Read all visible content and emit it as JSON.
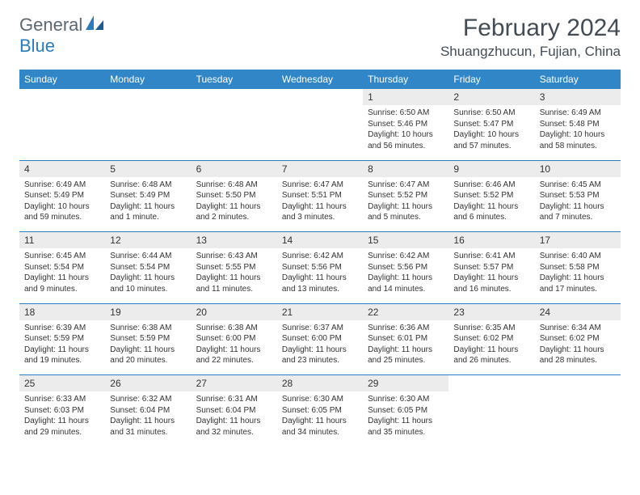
{
  "logo": {
    "part1": "General",
    "part2": "Blue"
  },
  "title": "February 2024",
  "location": "Shuangzhucun, Fujian, China",
  "colors": {
    "header_bg": "#3186c8",
    "header_text": "#ffffff",
    "daynum_bg": "#ececec",
    "rule": "#2b7bbf",
    "logo_gray": "#5c6770",
    "logo_blue": "#2b7bbf",
    "title_color": "#434c54"
  },
  "weekdays": [
    "Sunday",
    "Monday",
    "Tuesday",
    "Wednesday",
    "Thursday",
    "Friday",
    "Saturday"
  ],
  "layout": {
    "first_weekday_index": 4,
    "days_in_month": 29
  },
  "days": {
    "1": {
      "sunrise": "6:50 AM",
      "sunset": "5:46 PM",
      "daylight": "10 hours and 56 minutes."
    },
    "2": {
      "sunrise": "6:50 AM",
      "sunset": "5:47 PM",
      "daylight": "10 hours and 57 minutes."
    },
    "3": {
      "sunrise": "6:49 AM",
      "sunset": "5:48 PM",
      "daylight": "10 hours and 58 minutes."
    },
    "4": {
      "sunrise": "6:49 AM",
      "sunset": "5:49 PM",
      "daylight": "10 hours and 59 minutes."
    },
    "5": {
      "sunrise": "6:48 AM",
      "sunset": "5:49 PM",
      "daylight": "11 hours and 1 minute."
    },
    "6": {
      "sunrise": "6:48 AM",
      "sunset": "5:50 PM",
      "daylight": "11 hours and 2 minutes."
    },
    "7": {
      "sunrise": "6:47 AM",
      "sunset": "5:51 PM",
      "daylight": "11 hours and 3 minutes."
    },
    "8": {
      "sunrise": "6:47 AM",
      "sunset": "5:52 PM",
      "daylight": "11 hours and 5 minutes."
    },
    "9": {
      "sunrise": "6:46 AM",
      "sunset": "5:52 PM",
      "daylight": "11 hours and 6 minutes."
    },
    "10": {
      "sunrise": "6:45 AM",
      "sunset": "5:53 PM",
      "daylight": "11 hours and 7 minutes."
    },
    "11": {
      "sunrise": "6:45 AM",
      "sunset": "5:54 PM",
      "daylight": "11 hours and 9 minutes."
    },
    "12": {
      "sunrise": "6:44 AM",
      "sunset": "5:54 PM",
      "daylight": "11 hours and 10 minutes."
    },
    "13": {
      "sunrise": "6:43 AM",
      "sunset": "5:55 PM",
      "daylight": "11 hours and 11 minutes."
    },
    "14": {
      "sunrise": "6:42 AM",
      "sunset": "5:56 PM",
      "daylight": "11 hours and 13 minutes."
    },
    "15": {
      "sunrise": "6:42 AM",
      "sunset": "5:56 PM",
      "daylight": "11 hours and 14 minutes."
    },
    "16": {
      "sunrise": "6:41 AM",
      "sunset": "5:57 PM",
      "daylight": "11 hours and 16 minutes."
    },
    "17": {
      "sunrise": "6:40 AM",
      "sunset": "5:58 PM",
      "daylight": "11 hours and 17 minutes."
    },
    "18": {
      "sunrise": "6:39 AM",
      "sunset": "5:59 PM",
      "daylight": "11 hours and 19 minutes."
    },
    "19": {
      "sunrise": "6:38 AM",
      "sunset": "5:59 PM",
      "daylight": "11 hours and 20 minutes."
    },
    "20": {
      "sunrise": "6:38 AM",
      "sunset": "6:00 PM",
      "daylight": "11 hours and 22 minutes."
    },
    "21": {
      "sunrise": "6:37 AM",
      "sunset": "6:00 PM",
      "daylight": "11 hours and 23 minutes."
    },
    "22": {
      "sunrise": "6:36 AM",
      "sunset": "6:01 PM",
      "daylight": "11 hours and 25 minutes."
    },
    "23": {
      "sunrise": "6:35 AM",
      "sunset": "6:02 PM",
      "daylight": "11 hours and 26 minutes."
    },
    "24": {
      "sunrise": "6:34 AM",
      "sunset": "6:02 PM",
      "daylight": "11 hours and 28 minutes."
    },
    "25": {
      "sunrise": "6:33 AM",
      "sunset": "6:03 PM",
      "daylight": "11 hours and 29 minutes."
    },
    "26": {
      "sunrise": "6:32 AM",
      "sunset": "6:04 PM",
      "daylight": "11 hours and 31 minutes."
    },
    "27": {
      "sunrise": "6:31 AM",
      "sunset": "6:04 PM",
      "daylight": "11 hours and 32 minutes."
    },
    "28": {
      "sunrise": "6:30 AM",
      "sunset": "6:05 PM",
      "daylight": "11 hours and 34 minutes."
    },
    "29": {
      "sunrise": "6:30 AM",
      "sunset": "6:05 PM",
      "daylight": "11 hours and 35 minutes."
    }
  },
  "labels": {
    "sunrise": "Sunrise:",
    "sunset": "Sunset:",
    "daylight": "Daylight:"
  }
}
